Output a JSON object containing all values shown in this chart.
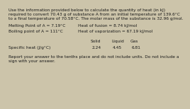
{
  "bg_color": "#ccc4aa",
  "text_color": "#1a1a1a",
  "line1": "Use the information provided below to calculate the quantity of heat (in kJ)",
  "line2": "required to convert 70.43 g of substance A from an initial temperature of 139.6°C",
  "line3": "to a final temperature of 70.58°C. The molar mass of the substance is 32.96 g/mol.",
  "melting_point": "Melting Point of A = 7.19°C",
  "heat_fusion": "Heat of fusion = 8.74 kJ/mol",
  "boiling_point": "Boiling point of A = 111°C",
  "heat_vap": "Heat of vaporization = 67.19 kJ/mol",
  "table_header": [
    "Solid",
    "Liquid",
    "Gas"
  ],
  "table_row_label": "Specific heat (J/g°C)",
  "table_values": [
    "2.24",
    "4.45",
    "6.81"
  ],
  "footer1": "Report your answer to the tenths place and do not include units. Do not include a",
  "footer2": "sign with your answer."
}
